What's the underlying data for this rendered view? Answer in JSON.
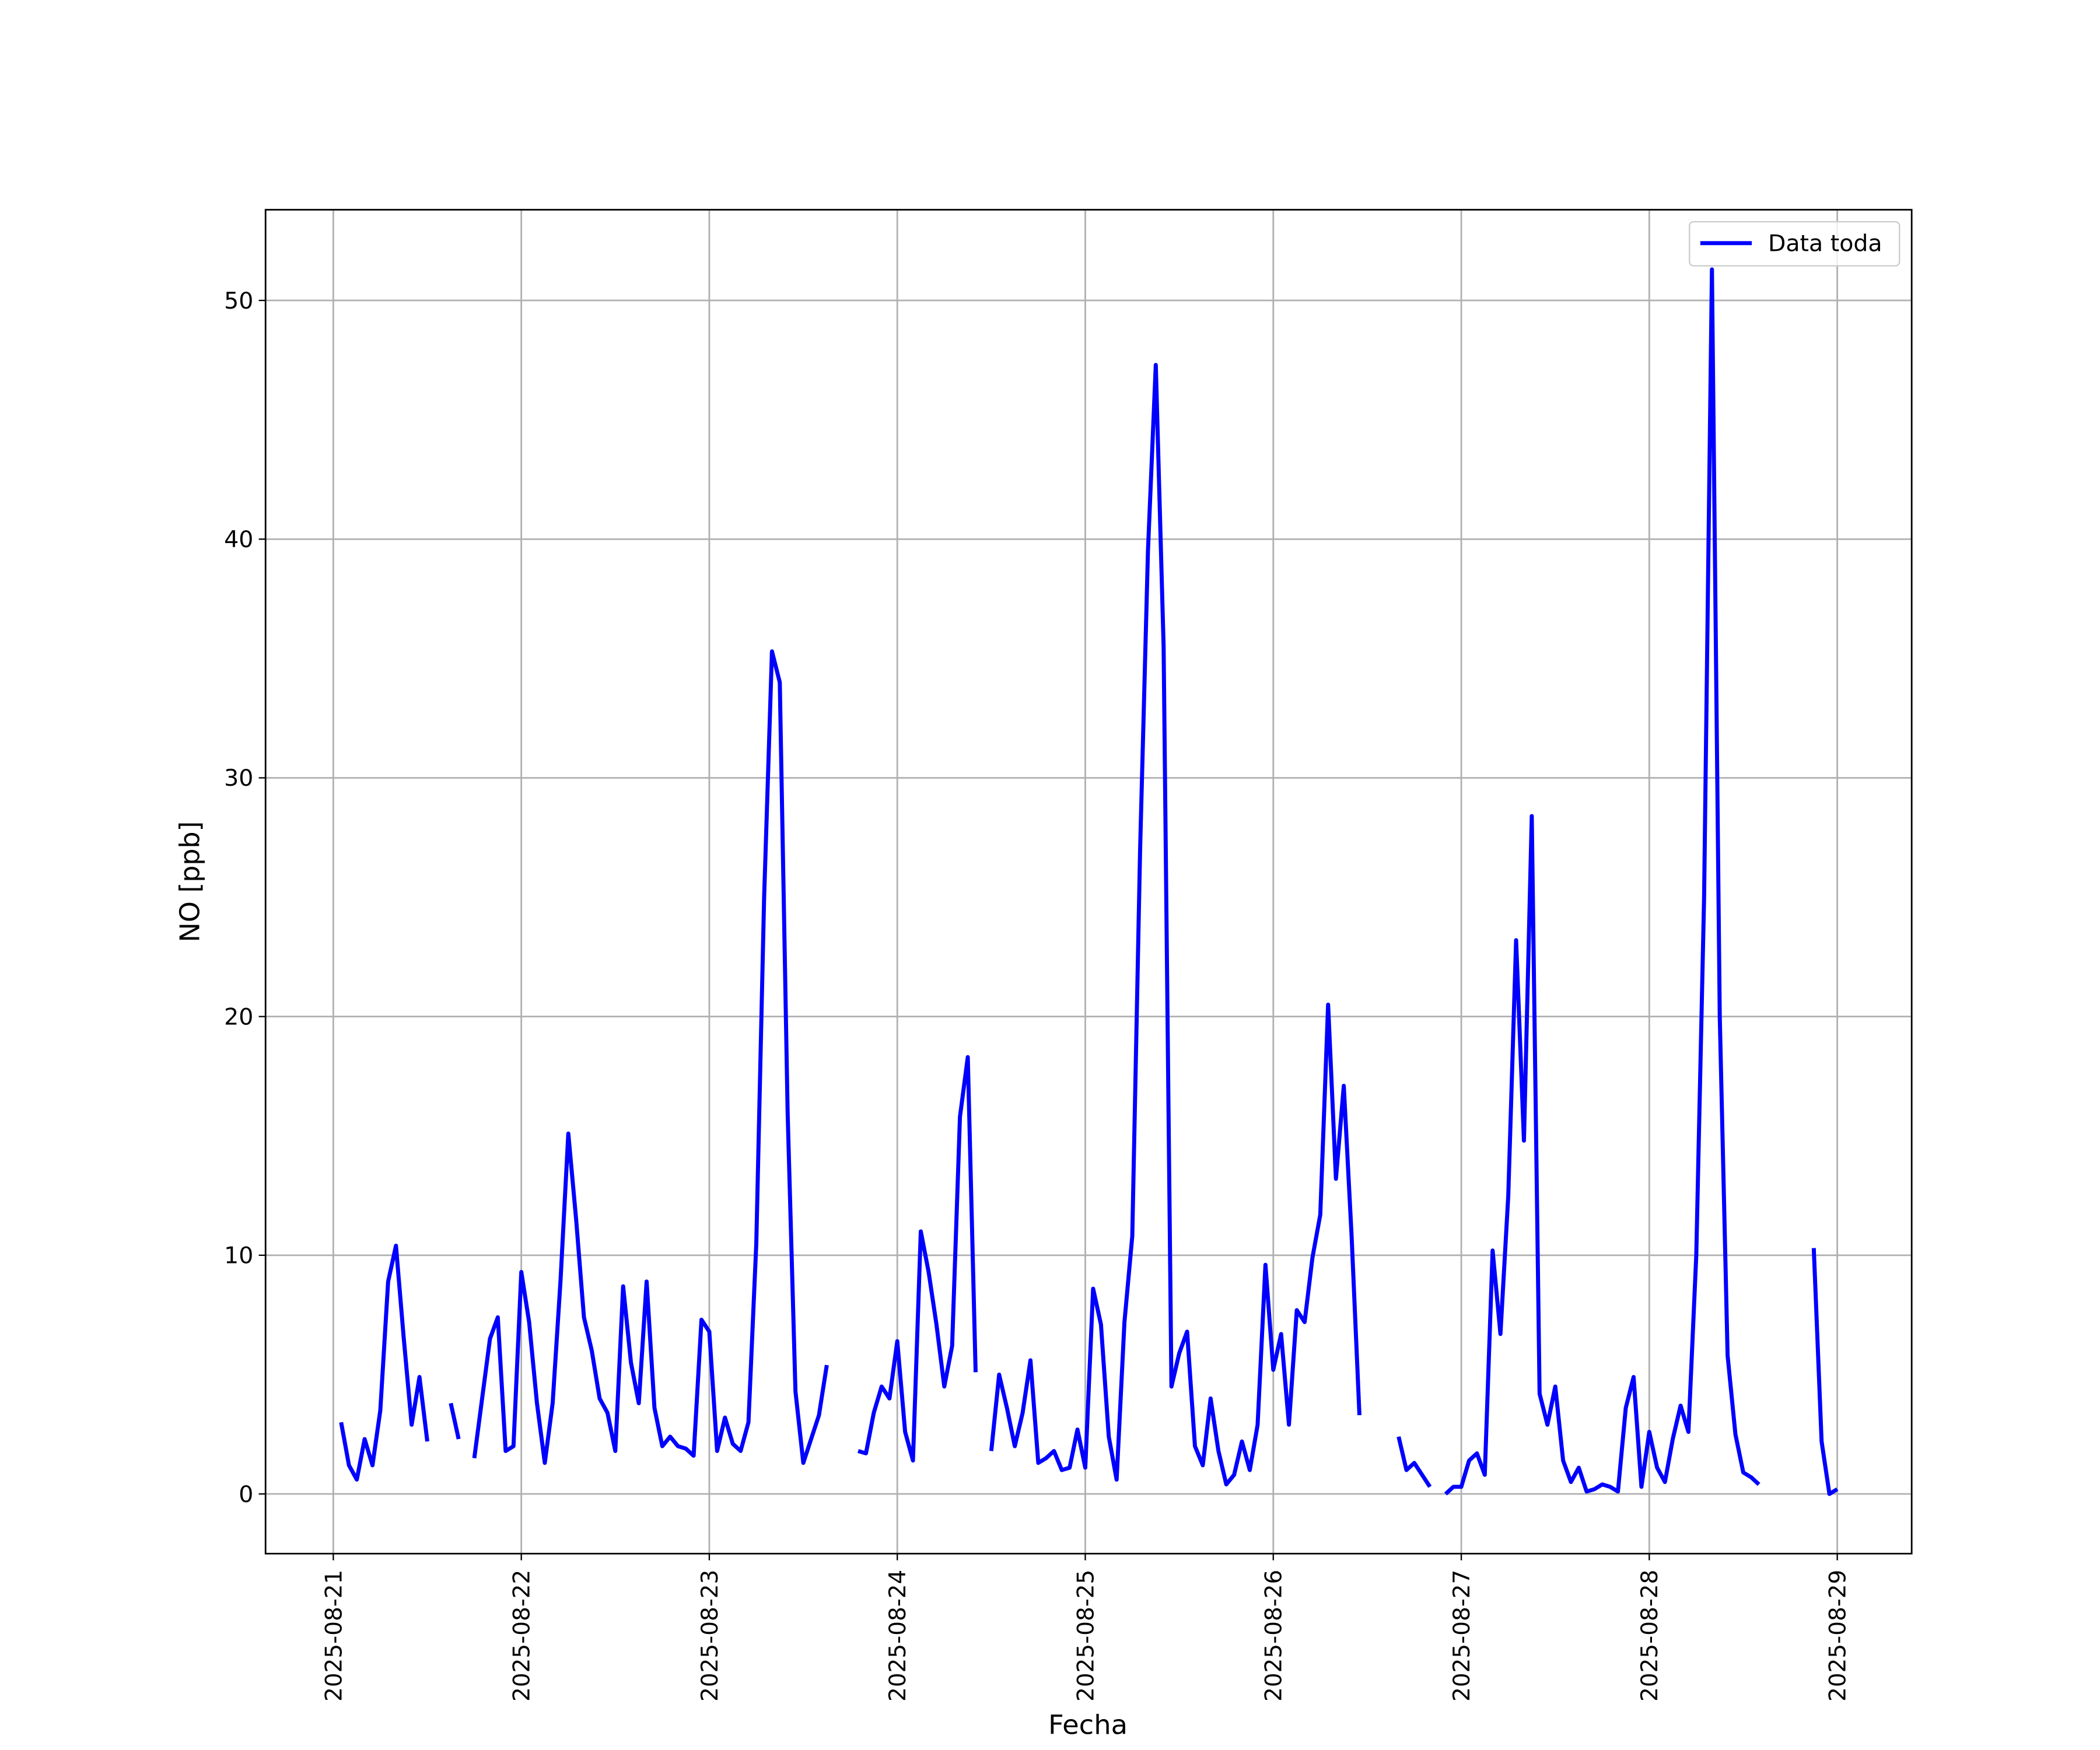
{
  "chart_data": {
    "type": "line",
    "xlabel": "Fecha",
    "ylabel": "NO [ppb]",
    "x": [
      "2025-08-21 01:00",
      "2025-08-21 02:00",
      "2025-08-21 03:00",
      "2025-08-21 04:00",
      "2025-08-21 05:00",
      "2025-08-21 06:00",
      "2025-08-21 07:00",
      "2025-08-21 08:00",
      "2025-08-21 09:00",
      "2025-08-21 10:00",
      "2025-08-21 11:00",
      "2025-08-21 12:00",
      "2025-08-21 13:00",
      "2025-08-21 14:00",
      "2025-08-21 15:00",
      "2025-08-21 16:00",
      "2025-08-21 17:00",
      "2025-08-21 18:00",
      "2025-08-21 19:00",
      "2025-08-21 20:00",
      "2025-08-21 21:00",
      "2025-08-21 22:00",
      "2025-08-21 23:00",
      "2025-08-22 00:00",
      "2025-08-22 01:00",
      "2025-08-22 02:00",
      "2025-08-22 03:00",
      "2025-08-22 04:00",
      "2025-08-22 05:00",
      "2025-08-22 06:00",
      "2025-08-22 07:00",
      "2025-08-22 08:00",
      "2025-08-22 09:00",
      "2025-08-22 10:00",
      "2025-08-22 11:00",
      "2025-08-22 12:00",
      "2025-08-22 13:00",
      "2025-08-22 14:00",
      "2025-08-22 15:00",
      "2025-08-22 16:00",
      "2025-08-22 17:00",
      "2025-08-22 18:00",
      "2025-08-22 19:00",
      "2025-08-22 20:00",
      "2025-08-22 21:00",
      "2025-08-22 22:00",
      "2025-08-22 23:00",
      "2025-08-23 00:00",
      "2025-08-23 01:00",
      "2025-08-23 02:00",
      "2025-08-23 03:00",
      "2025-08-23 04:00",
      "2025-08-23 05:00",
      "2025-08-23 06:00",
      "2025-08-23 07:00",
      "2025-08-23 08:00",
      "2025-08-23 09:00",
      "2025-08-23 10:00",
      "2025-08-23 11:00",
      "2025-08-23 12:00",
      "2025-08-23 13:00",
      "2025-08-23 14:00",
      "2025-08-23 15:00",
      "2025-08-23 16:00",
      "2025-08-23 17:00",
      "2025-08-23 18:00",
      "2025-08-23 19:00",
      "2025-08-23 20:00",
      "2025-08-23 21:00",
      "2025-08-23 22:00",
      "2025-08-23 23:00",
      "2025-08-24 00:00",
      "2025-08-24 01:00",
      "2025-08-24 02:00",
      "2025-08-24 03:00",
      "2025-08-24 04:00",
      "2025-08-24 05:00",
      "2025-08-24 06:00",
      "2025-08-24 07:00",
      "2025-08-24 08:00",
      "2025-08-24 09:00",
      "2025-08-24 10:00",
      "2025-08-24 11:00",
      "2025-08-24 12:00",
      "2025-08-24 13:00",
      "2025-08-24 14:00",
      "2025-08-24 15:00",
      "2025-08-24 16:00",
      "2025-08-24 17:00",
      "2025-08-24 18:00",
      "2025-08-24 19:00",
      "2025-08-24 20:00",
      "2025-08-24 21:00",
      "2025-08-24 22:00",
      "2025-08-24 23:00",
      "2025-08-25 00:00",
      "2025-08-25 01:00",
      "2025-08-25 02:00",
      "2025-08-25 03:00",
      "2025-08-25 04:00",
      "2025-08-25 05:00",
      "2025-08-25 06:00",
      "2025-08-25 07:00",
      "2025-08-25 08:00",
      "2025-08-25 09:00",
      "2025-08-25 10:00",
      "2025-08-25 11:00",
      "2025-08-25 12:00",
      "2025-08-25 13:00",
      "2025-08-25 14:00",
      "2025-08-25 15:00",
      "2025-08-25 16:00",
      "2025-08-25 17:00",
      "2025-08-25 18:00",
      "2025-08-25 19:00",
      "2025-08-25 20:00",
      "2025-08-25 21:00",
      "2025-08-25 22:00",
      "2025-08-25 23:00",
      "2025-08-26 00:00",
      "2025-08-26 01:00",
      "2025-08-26 02:00",
      "2025-08-26 03:00",
      "2025-08-26 04:00",
      "2025-08-26 05:00",
      "2025-08-26 06:00",
      "2025-08-26 07:00",
      "2025-08-26 08:00",
      "2025-08-26 09:00",
      "2025-08-26 10:00",
      "2025-08-26 11:00",
      "2025-08-26 12:00",
      "2025-08-26 13:00",
      "2025-08-26 14:00",
      "2025-08-26 15:00",
      "2025-08-26 16:00",
      "2025-08-26 17:00",
      "2025-08-26 18:00",
      "2025-08-26 19:00",
      "2025-08-26 20:00",
      "2025-08-26 21:00",
      "2025-08-26 22:00",
      "2025-08-26 23:00",
      "2025-08-27 00:00",
      "2025-08-27 01:00",
      "2025-08-27 02:00",
      "2025-08-27 03:00",
      "2025-08-27 04:00",
      "2025-08-27 05:00",
      "2025-08-27 06:00",
      "2025-08-27 07:00",
      "2025-08-27 08:00",
      "2025-08-27 09:00",
      "2025-08-27 10:00",
      "2025-08-27 11:00",
      "2025-08-27 12:00",
      "2025-08-27 13:00",
      "2025-08-27 14:00",
      "2025-08-27 15:00",
      "2025-08-27 16:00",
      "2025-08-27 17:00",
      "2025-08-27 18:00",
      "2025-08-27 19:00",
      "2025-08-27 20:00",
      "2025-08-27 21:00",
      "2025-08-27 22:00",
      "2025-08-27 23:00",
      "2025-08-28 00:00",
      "2025-08-28 01:00",
      "2025-08-28 02:00",
      "2025-08-28 03:00",
      "2025-08-28 04:00",
      "2025-08-28 05:00",
      "2025-08-28 06:00",
      "2025-08-28 07:00",
      "2025-08-28 08:00",
      "2025-08-28 09:00",
      "2025-08-28 10:00",
      "2025-08-28 11:00",
      "2025-08-28 12:00",
      "2025-08-28 13:00",
      "2025-08-28 14:00",
      "2025-08-28 15:00",
      "2025-08-28 16:00",
      "2025-08-28 17:00",
      "2025-08-28 18:00",
      "2025-08-28 19:00",
      "2025-08-28 20:00",
      "2025-08-28 21:00",
      "2025-08-28 22:00",
      "2025-08-28 23:00",
      "2025-08-29 00:00"
    ],
    "series": [
      {
        "name": "Data toda",
        "color": "#0000ff",
        "values": [
          3.0,
          1.2,
          0.6,
          2.3,
          1.2,
          3.5,
          8.9,
          10.4,
          6.5,
          2.9,
          4.9,
          2.2,
          null,
          null,
          3.8,
          2.3,
          null,
          1.5,
          4.0,
          6.5,
          7.4,
          1.8,
          2.0,
          9.3,
          7.2,
          3.8,
          1.3,
          3.8,
          8.9,
          15.1,
          11.5,
          7.4,
          6.0,
          4.0,
          3.4,
          1.8,
          8.7,
          5.5,
          3.8,
          8.9,
          3.6,
          2.0,
          2.4,
          2.0,
          1.9,
          1.6,
          7.3,
          6.8,
          1.8,
          3.2,
          2.1,
          1.8,
          3.0,
          10.5,
          25,
          35.3,
          34.0,
          16,
          4.3,
          1.3,
          2.3,
          3.3,
          5.4,
          null,
          null,
          null,
          1.8,
          1.7,
          3.4,
          4.5,
          4.0,
          6.4,
          2.6,
          1.4,
          11.0,
          9.3,
          7.1,
          4.5,
          6.2,
          15.8,
          18.3,
          5.1,
          null,
          1.8,
          5.0,
          3.6,
          2.0,
          3.4,
          5.6,
          1.3,
          1.5,
          1.8,
          1.0,
          1.1,
          2.7,
          1.1,
          8.6,
          7.1,
          2.4,
          0.6,
          7.2,
          10.8,
          27,
          39.5,
          47.3,
          35.5,
          4.5,
          5.9,
          6.8,
          2.0,
          1.2,
          4.0,
          1.8,
          0.4,
          0.8,
          2.2,
          1.0,
          2.9,
          9.6,
          5.2,
          6.7,
          2.9,
          7.7,
          7.2,
          9.9,
          11.7,
          20.5,
          13.2,
          17.1,
          10.8,
          3.3,
          null,
          null,
          null,
          null,
          2.4,
          1.0,
          1.3,
          0.8,
          0.3,
          null,
          0.0,
          0.3,
          0.3,
          1.4,
          1.7,
          0.8,
          10.2,
          6.7,
          12.5,
          23.2,
          14.8,
          28.4,
          4.2,
          2.9,
          4.5,
          1.4,
          0.5,
          1.1,
          0.1,
          0.2,
          0.4,
          0.3,
          0.1,
          3.6,
          4.9,
          0.3,
          2.6,
          1.1,
          0.5,
          2.3,
          3.7,
          2.6,
          10,
          25,
          51.3,
          20,
          5.8,
          2.5,
          0.9,
          0.7,
          0.4,
          null,
          null,
          null,
          null,
          null,
          null,
          10.3,
          2.2,
          0.0,
          0.2
        ]
      }
    ],
    "xlim": [
      "2025-08-20 15:21",
      "2025-08-29 09:30"
    ],
    "xticks": [
      "2025-08-21",
      "2025-08-22",
      "2025-08-23",
      "2025-08-24",
      "2025-08-25",
      "2025-08-26",
      "2025-08-27",
      "2025-08-28",
      "2025-08-29"
    ],
    "ylim": [
      -2.5,
      53.8
    ],
    "yticks": [
      0,
      10,
      20,
      30,
      40,
      50
    ],
    "grid": true,
    "legend": "upper right"
  }
}
